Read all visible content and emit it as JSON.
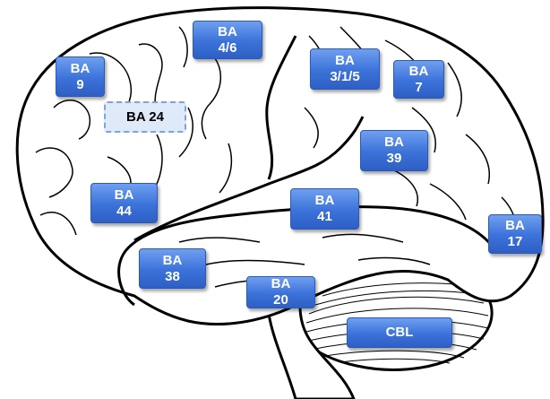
{
  "diagram": {
    "labels": [
      {
        "id": "ba-4-6",
        "text": "BA\n4/6"
      },
      {
        "id": "ba-9",
        "text": "BA\n9"
      },
      {
        "id": "ba-3-1-5",
        "text": "BA\n3/1/5"
      },
      {
        "id": "ba-7",
        "text": "BA\n7"
      },
      {
        "id": "ba-24",
        "text": "BA 24"
      },
      {
        "id": "ba-39",
        "text": "BA\n39"
      },
      {
        "id": "ba-44",
        "text": "BA\n44"
      },
      {
        "id": "ba-41",
        "text": "BA\n41"
      },
      {
        "id": "ba-17",
        "text": "BA\n17"
      },
      {
        "id": "ba-38",
        "text": "BA\n38"
      },
      {
        "id": "ba-20",
        "text": "BA\n20"
      },
      {
        "id": "cbl",
        "text": "CBL"
      }
    ],
    "colors": {
      "label_fill": "#3b72d9",
      "label_border": "#2a59b8",
      "dashed_label_fill": "#dfeaf8",
      "dashed_label_border": "#7ea4d8",
      "outline": "#000000"
    }
  }
}
